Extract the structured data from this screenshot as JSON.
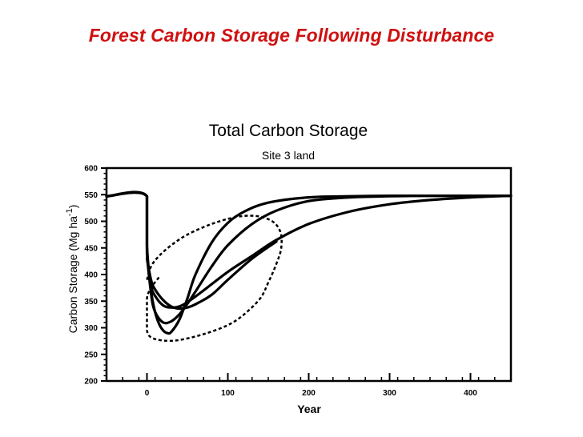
{
  "slide": {
    "title": "Forest Carbon Storage Following Disturbance"
  },
  "chart_data": {
    "type": "line",
    "title": "Total Carbon Storage",
    "subtitle": "Site 3 land",
    "xlabel": "Year",
    "ylabel": "Carbon Storage (Mg ha -1)",
    "ylabel_main": "Carbon Storage (Mg ha",
    "ylabel_sup": "-1",
    "ylabel_close": ")",
    "xlim": [
      -50,
      450
    ],
    "ylim": [
      200,
      600
    ],
    "x_ticks": [
      0,
      100,
      200,
      300,
      400
    ],
    "y_ticks": [
      200,
      250,
      300,
      350,
      400,
      450,
      500,
      550,
      600
    ],
    "grid": false,
    "series": [
      {
        "style": "solid",
        "x": [
          -50,
          0,
          0,
          5,
          10,
          15,
          20,
          25,
          30,
          40,
          50,
          60,
          80,
          100,
          120,
          150,
          200,
          250,
          300,
          350,
          400,
          450
        ],
        "y": [
          547,
          547,
          455,
          370,
          330,
          307,
          295,
          290,
          292,
          315,
          355,
          400,
          460,
          497,
          518,
          535,
          545,
          547,
          548,
          548,
          548,
          548
        ]
      },
      {
        "style": "solid",
        "x": [
          -50,
          0,
          0,
          5,
          10,
          20,
          30,
          40,
          50,
          60,
          80,
          100,
          130,
          160,
          200,
          250,
          300,
          350,
          400,
          450
        ],
        "y": [
          547,
          547,
          450,
          365,
          330,
          310,
          312,
          325,
          345,
          368,
          415,
          455,
          495,
          520,
          538,
          545,
          547,
          548,
          548,
          548
        ]
      },
      {
        "style": "solid",
        "x": [
          -50,
          0,
          0,
          5,
          10,
          20,
          30,
          40,
          50,
          70,
          100,
          130,
          160,
          200,
          250,
          300,
          350,
          400,
          450
        ],
        "y": [
          547,
          547,
          440,
          380,
          360,
          342,
          338,
          340,
          348,
          370,
          405,
          435,
          465,
          495,
          518,
          532,
          540,
          545,
          548
        ]
      },
      {
        "style": "solid",
        "x": [
          0,
          5,
          10,
          20,
          30,
          40,
          50,
          60,
          80,
          100,
          130,
          160
        ],
        "y": [
          430,
          390,
          372,
          352,
          340,
          336,
          338,
          344,
          362,
          390,
          430,
          462
        ]
      },
      {
        "style": "dashed",
        "x": [
          0,
          5,
          15,
          30,
          50,
          80,
          110,
          135,
          155,
          165,
          166,
          160,
          150,
          140,
          120,
          100,
          70,
          40,
          20,
          5,
          0,
          0,
          0,
          5,
          15
        ],
        "y": [
          390,
          415,
          435,
          455,
          475,
          495,
          508,
          510,
          500,
          480,
          450,
          420,
          385,
          355,
          325,
          305,
          288,
          277,
          276,
          282,
          295,
          320,
          355,
          375,
          395
        ]
      }
    ]
  }
}
